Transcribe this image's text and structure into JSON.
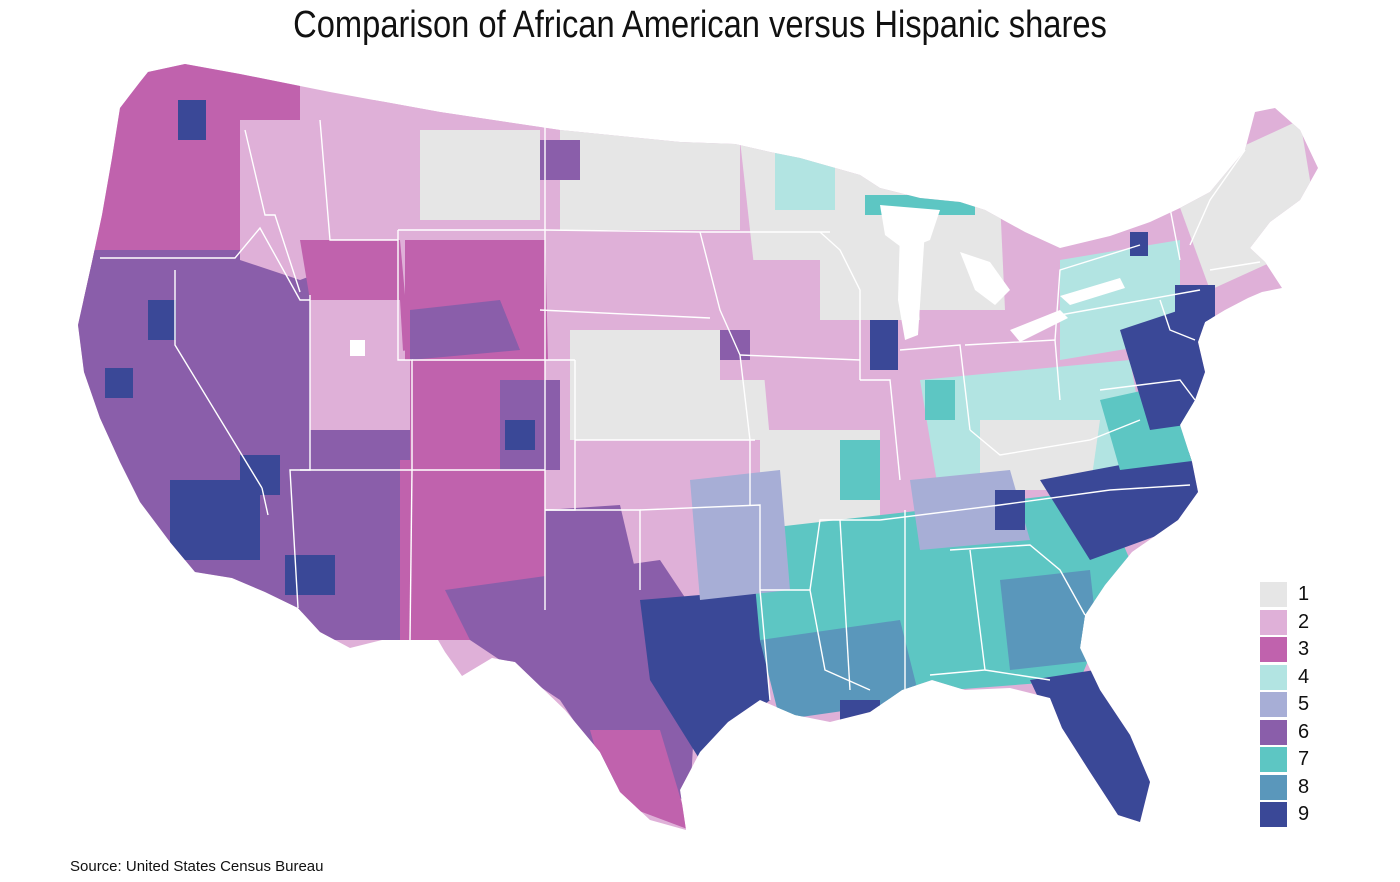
{
  "title": "Comparison of African American versus Hispanic shares",
  "source": "Source: United States Census Bureau",
  "legend": {
    "items": [
      {
        "label": "1",
        "color": "#e6e6e6"
      },
      {
        "label": "2",
        "color": "#dfb0d8"
      },
      {
        "label": "3",
        "color": "#c062ad"
      },
      {
        "label": "4",
        "color": "#b2e4e2"
      },
      {
        "label": "5",
        "color": "#a7aed6"
      },
      {
        "label": "6",
        "color": "#8a5eaa"
      },
      {
        "label": "7",
        "color": "#5dc6c3"
      },
      {
        "label": "8",
        "color": "#5a97bb"
      },
      {
        "label": "9",
        "color": "#3a4897"
      }
    ]
  }
}
